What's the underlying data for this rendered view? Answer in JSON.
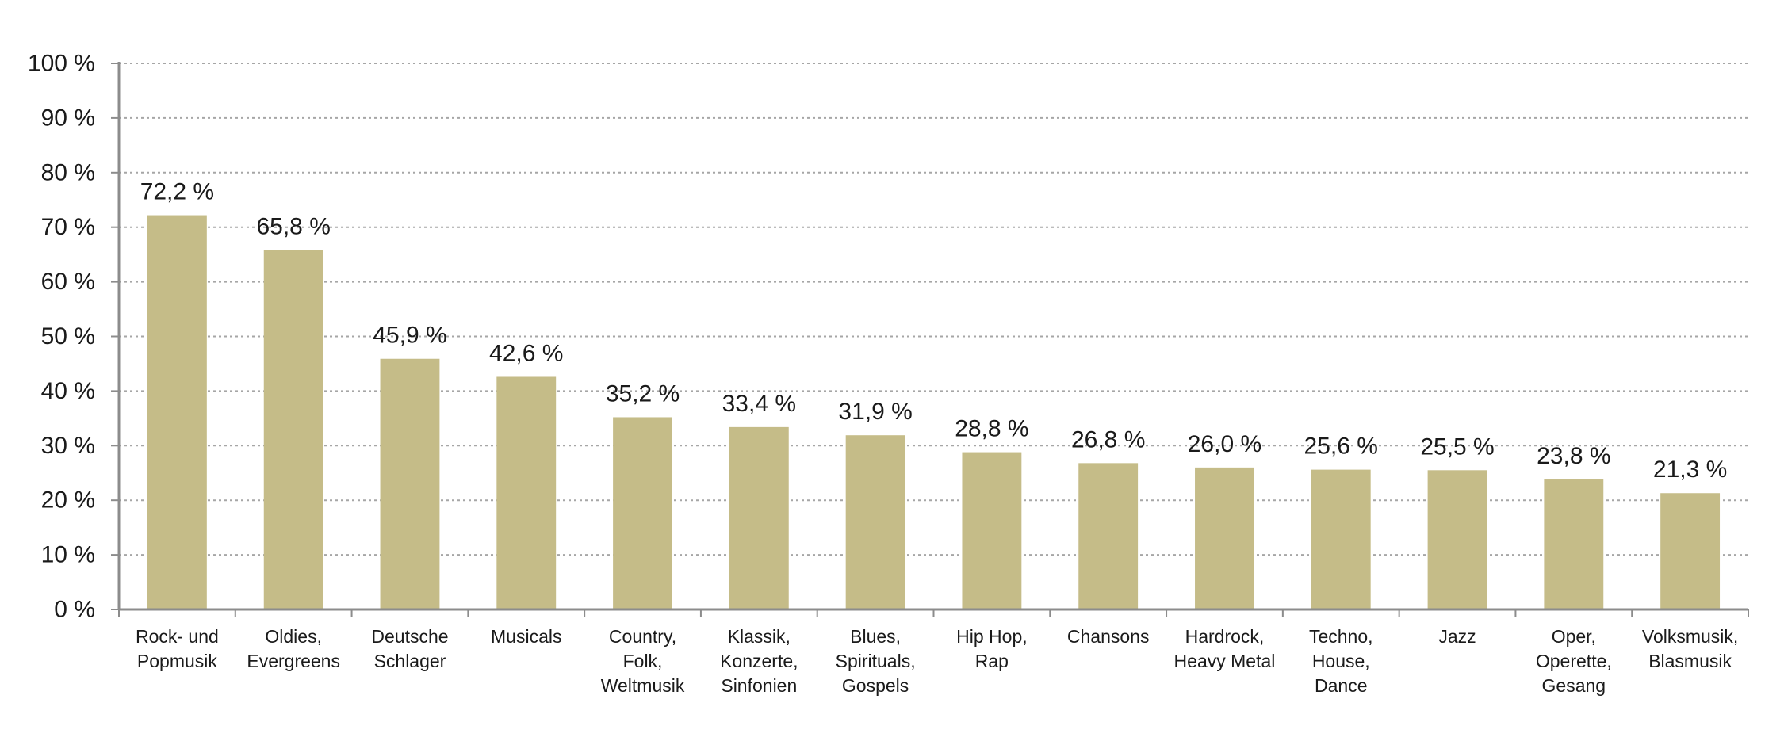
{
  "chart_data": {
    "type": "bar",
    "categories": [
      [
        "Rock- und",
        "Popmusik"
      ],
      [
        "Oldies,",
        "Evergreens"
      ],
      [
        "Deutsche",
        "Schlager"
      ],
      [
        "Musicals"
      ],
      [
        "Country,",
        "Folk,",
        "Weltmusik"
      ],
      [
        "Klassik,",
        "Konzerte,",
        "Sinfonien"
      ],
      [
        "Blues,",
        "Spirituals,",
        "Gospels"
      ],
      [
        "Hip Hop,",
        "Rap"
      ],
      [
        "Chansons"
      ],
      [
        "Hardrock,",
        "Heavy Metal"
      ],
      [
        "Techno,",
        "House,",
        "Dance"
      ],
      [
        "Jazz"
      ],
      [
        "Oper,",
        "Operette,",
        "Gesang"
      ],
      [
        "Volksmusik,",
        "Blasmusik"
      ]
    ],
    "values": [
      72.2,
      65.8,
      45.9,
      42.6,
      35.2,
      33.4,
      31.9,
      28.8,
      26.8,
      26.0,
      25.6,
      25.5,
      23.8,
      21.3
    ],
    "value_labels": [
      "72,2 %",
      "65,8 %",
      "45,9 %",
      "42,6 %",
      "35,2 %",
      "33,4 %",
      "31,9 %",
      "28,8 %",
      "26,8 %",
      "26,0 %",
      "25,6 %",
      "25,5 %",
      "23,8 %",
      "21,3 %"
    ],
    "y_ticks": [
      0,
      10,
      20,
      30,
      40,
      50,
      60,
      70,
      80,
      90,
      100
    ],
    "y_tick_labels": [
      "0 %",
      "10 %",
      "20 %",
      "30 %",
      "40 %",
      "50 %",
      "60 %",
      "70 %",
      "80 %",
      "90 %",
      "100 %"
    ],
    "ylim": [
      0,
      100
    ],
    "title": "",
    "xlabel": "",
    "ylabel": "",
    "grid": true,
    "bar_color": "#c5bc88"
  }
}
